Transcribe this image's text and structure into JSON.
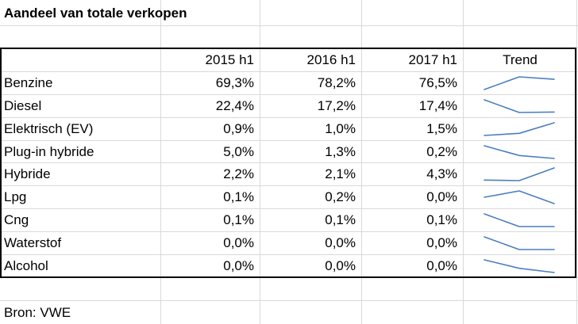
{
  "sheet": {
    "title": "Aandeel van totale verkopen",
    "source": "Bron: VWE",
    "spark_color": "#4a7fbf"
  },
  "table": {
    "headers": [
      "2015 h1",
      "2016 h1",
      "2017 h1",
      "Trend"
    ],
    "rows": [
      {
        "label": "Benzine",
        "values": [
          "69,3%",
          "78,2%",
          "76,5%"
        ],
        "trend": [
          69.3,
          78.2,
          76.5
        ]
      },
      {
        "label": "Diesel",
        "values": [
          "22,4%",
          "17,2%",
          "17,4%"
        ],
        "trend": [
          22.4,
          17.2,
          17.4
        ]
      },
      {
        "label": "Elektrisch (EV)",
        "values": [
          "0,9%",
          "1,0%",
          "1,5%"
        ],
        "trend": [
          0.9,
          1.0,
          1.5
        ]
      },
      {
        "label": "Plug-in hybride",
        "values": [
          "5,0%",
          "1,3%",
          "0,2%"
        ],
        "trend": [
          5.0,
          1.3,
          0.2
        ]
      },
      {
        "label": "Hybride",
        "values": [
          "2,2%",
          "2,1%",
          "4,3%"
        ],
        "trend": [
          2.2,
          2.1,
          4.3
        ]
      },
      {
        "label": "Lpg",
        "values": [
          "0,1%",
          "0,2%",
          "0,0%"
        ],
        "trend": [
          0.1,
          0.2,
          0.0
        ]
      },
      {
        "label": "Cng",
        "values": [
          "0,1%",
          "0,1%",
          "0,1%"
        ],
        "trend": [
          0.14,
          0.1,
          0.1
        ]
      },
      {
        "label": "Waterstof",
        "values": [
          "0,0%",
          "0,0%",
          "0,0%"
        ],
        "trend": [
          0.04,
          0.01,
          0.01
        ]
      },
      {
        "label": "Alcohol",
        "values": [
          "0,0%",
          "0,0%",
          "0,0%"
        ],
        "trend": [
          0.04,
          0.02,
          0.01
        ]
      }
    ]
  }
}
